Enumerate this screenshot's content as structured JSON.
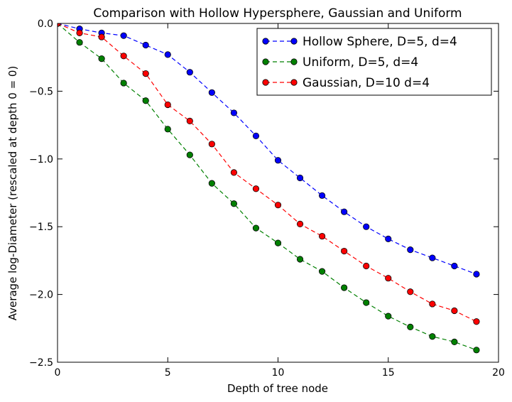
{
  "chart_data": {
    "type": "line",
    "title": "Comparison with Hollow Hypersphere, Gaussian and Uniform",
    "xlabel": "Depth of tree node",
    "ylabel": "Average log-Diameter (rescaled at depth 0 = 0)",
    "xlim": [
      0,
      20
    ],
    "ylim": [
      -2.5,
      0.0
    ],
    "xticks": [
      0,
      5,
      10,
      15,
      20
    ],
    "xtick_labels": [
      "0",
      "5",
      "10",
      "15",
      "20"
    ],
    "yticks": [
      0.0,
      -0.5,
      -1.0,
      -1.5,
      -2.0,
      -2.5
    ],
    "ytick_labels": [
      "0.0",
      "−0.5",
      "−1.0",
      "−1.5",
      "−2.0",
      "−2.5"
    ],
    "grid": false,
    "legend_position": "top-right",
    "x": [
      0,
      1,
      2,
      3,
      4,
      5,
      6,
      7,
      8,
      9,
      10,
      11,
      12,
      13,
      14,
      15,
      16,
      17,
      18,
      19
    ],
    "series": [
      {
        "name": "Hollow Sphere, D=5, d=4",
        "color": "#0000ff",
        "values": [
          0.0,
          -0.04,
          -0.07,
          -0.09,
          -0.16,
          -0.23,
          -0.36,
          -0.51,
          -0.66,
          -0.83,
          -1.01,
          -1.14,
          -1.27,
          -1.39,
          -1.5,
          -1.59,
          -1.67,
          -1.73,
          -1.79,
          -1.85
        ]
      },
      {
        "name": "Uniform, D=5, d=4",
        "color": "#008000",
        "values": [
          0.0,
          -0.14,
          -0.26,
          -0.44,
          -0.57,
          -0.78,
          -0.97,
          -1.18,
          -1.33,
          -1.51,
          -1.62,
          -1.74,
          -1.83,
          -1.95,
          -2.06,
          -2.16,
          -2.24,
          -2.31,
          -2.35,
          -2.41
        ]
      },
      {
        "name": "Gaussian, D=10 d=4",
        "color": "#ff0000",
        "values": [
          0.0,
          -0.07,
          -0.1,
          -0.24,
          -0.37,
          -0.6,
          -0.72,
          -0.89,
          -1.1,
          -1.22,
          -1.34,
          -1.48,
          -1.57,
          -1.68,
          -1.79,
          -1.88,
          -1.98,
          -2.07,
          -2.12,
          -2.2
        ]
      }
    ]
  }
}
